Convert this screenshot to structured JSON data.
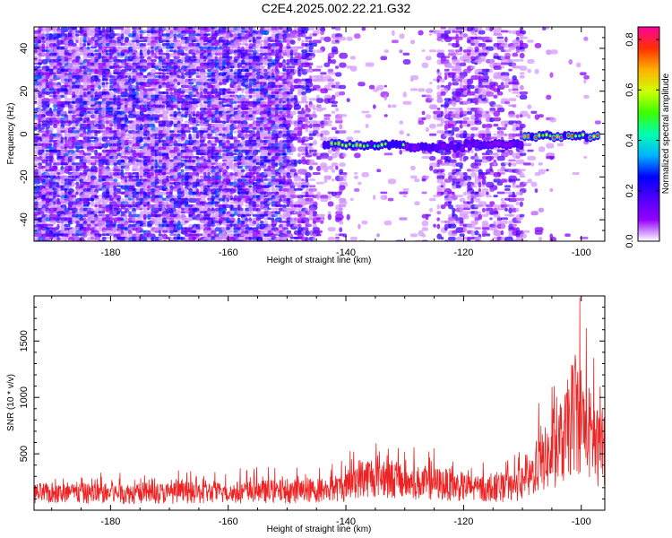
{
  "title": "C2E4.2025.002.22.21.G32",
  "chart_data": [
    {
      "type": "heatmap",
      "xlabel": "Height of straight line (km)",
      "ylabel": "Frequency (Hz)",
      "xlim": [
        -193,
        -96
      ],
      "ylim": [
        -50,
        50
      ],
      "xticks": [
        -180,
        -160,
        -140,
        -120,
        -100
      ],
      "yticks": [
        -40,
        -20,
        0,
        20,
        40
      ],
      "colorbar": {
        "label": "Normalized spectral amplitude",
        "range": [
          0,
          0.85
        ],
        "ticks": [
          0,
          0.2,
          0.4,
          0.6,
          0.8
        ],
        "tick_labels": [
          "0.0",
          "0.2",
          "0.4",
          "0.6",
          "0.8"
        ],
        "colors": [
          "#ffffff",
          "#9400ff",
          "#4f00ff",
          "#0000ff",
          "#00b4ff",
          "#00ffb0",
          "#3cff00",
          "#d0ff00",
          "#ffb000",
          "#ff3000",
          "#ff00a0"
        ]
      },
      "ridge": [
        {
          "x_range": [
            -144,
            -130
          ],
          "y": -5,
          "amplitude": 0.6
        },
        {
          "x_range": [
            -130,
            -120
          ],
          "y": -6,
          "amplitude": 0.35
        },
        {
          "x_range": [
            -120,
            -110
          ],
          "y": -5,
          "amplitude": 0.3
        },
        {
          "x_range": [
            -110,
            -97
          ],
          "y": -1,
          "amplitude": 0.8
        }
      ]
    },
    {
      "type": "line",
      "xlabel": "Height of straight line (km)",
      "ylabel": "SNR (10 * v/v)",
      "xlim": [
        -193,
        -96
      ],
      "ylim": [
        0,
        1900
      ],
      "xticks": [
        -180,
        -160,
        -140,
        -120,
        -100
      ],
      "yticks": [
        500,
        1000,
        1500
      ],
      "color": "#ee2222",
      "envelope": [
        {
          "x": -193,
          "y": 220
        },
        {
          "x": -180,
          "y": 220
        },
        {
          "x": -160,
          "y": 230
        },
        {
          "x": -145,
          "y": 260
        },
        {
          "x": -140,
          "y": 300
        },
        {
          "x": -138,
          "y": 420
        },
        {
          "x": -134,
          "y": 460
        },
        {
          "x": -130,
          "y": 360
        },
        {
          "x": -126,
          "y": 360
        },
        {
          "x": -122,
          "y": 330
        },
        {
          "x": -118,
          "y": 280
        },
        {
          "x": -112,
          "y": 290
        },
        {
          "x": -109,
          "y": 380
        },
        {
          "x": -107,
          "y": 650
        },
        {
          "x": -105,
          "y": 700
        },
        {
          "x": -103,
          "y": 900
        },
        {
          "x": -101,
          "y": 1350
        },
        {
          "x": -99,
          "y": 1050
        },
        {
          "x": -97,
          "y": 800
        },
        {
          "x": -96,
          "y": 850
        }
      ]
    }
  ]
}
